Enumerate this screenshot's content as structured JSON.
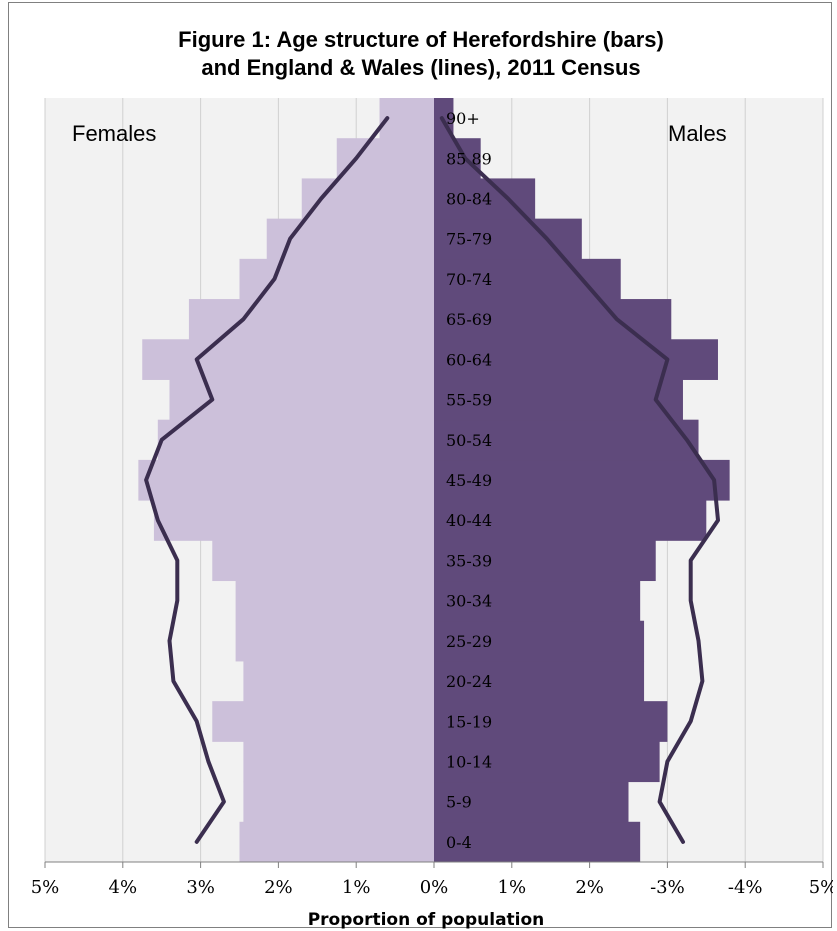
{
  "chart_data": {
    "type": "bar",
    "subtype": "population-pyramid",
    "title_lines": [
      "Figure 1: Age structure of Herefordshire (bars)",
      "and England & Wales (lines), 2011 Census"
    ],
    "xlabel": "Proportion of population",
    "left_label": "Females",
    "right_label": "Males",
    "xlim": [
      -5,
      5
    ],
    "x_tick_labels": [
      "5%",
      "4%",
      "3%",
      "2%",
      "1%",
      "0%",
      "1%",
      "2%",
      "-3%",
      "-4%",
      "5%"
    ],
    "grid": "vertical",
    "categories": [
      "0-4",
      "5-9",
      "10-14",
      "15-19",
      "20-24",
      "25-29",
      "30-34",
      "35-39",
      "40-44",
      "45-49",
      "50-54",
      "55-59",
      "60-64",
      "65-69",
      "70-74",
      "75-79",
      "80-84",
      "85 89",
      "90+"
    ],
    "series": [
      {
        "kind": "bar",
        "side": "left",
        "color": "#ccc0da",
        "values": [
          2.5,
          2.45,
          2.45,
          2.85,
          2.45,
          2.55,
          2.55,
          2.85,
          3.6,
          3.8,
          3.55,
          3.4,
          3.75,
          3.15,
          2.5,
          2.15,
          1.7,
          1.25,
          0.7
        ]
      },
      {
        "kind": "bar",
        "side": "right",
        "color": "#604a7b",
        "values": [
          2.65,
          2.5,
          2.9,
          3.0,
          2.7,
          2.7,
          2.65,
          2.85,
          3.5,
          3.8,
          3.4,
          3.2,
          3.65,
          3.05,
          2.4,
          1.9,
          1.3,
          0.6,
          0.25
        ]
      },
      {
        "kind": "line",
        "side": "left",
        "color": "#3b2e4f",
        "values": [
          3.05,
          2.7,
          2.9,
          3.05,
          3.35,
          3.4,
          3.3,
          3.3,
          3.55,
          3.7,
          3.5,
          2.85,
          3.05,
          2.45,
          2.05,
          1.85,
          1.45,
          1.0,
          0.6
        ]
      },
      {
        "kind": "line",
        "side": "right",
        "color": "#3b2e4f",
        "values": [
          3.2,
          2.9,
          3.0,
          3.3,
          3.45,
          3.4,
          3.3,
          3.3,
          3.65,
          3.6,
          3.25,
          2.85,
          3.0,
          2.35,
          1.9,
          1.45,
          0.95,
          0.4,
          0.1
        ]
      }
    ]
  }
}
